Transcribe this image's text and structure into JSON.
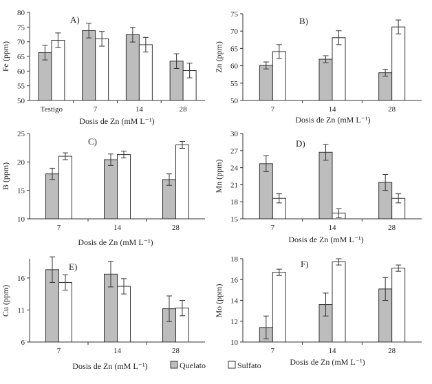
{
  "legend": [
    {
      "label": "Quelato",
      "color": "#bdbdbd"
    },
    {
      "label": "Sulfato",
      "color": "#ffffff"
    }
  ],
  "colors": {
    "quelato": "#bdbdbd",
    "sulfato": "#ffffff",
    "stroke": "#333333"
  },
  "chart_data": [
    {
      "type": "bar",
      "panel": "A)",
      "ylabel": "Fe (ppm)",
      "xlabel": "Dosis de Zn (mM L⁻¹)",
      "categories": [
        "Testigo",
        "7",
        "14",
        "28"
      ],
      "ylim": [
        50,
        80
      ],
      "yticks": [
        50,
        55,
        60,
        65,
        70,
        75,
        80
      ],
      "series": [
        {
          "name": "Quelato",
          "values": [
            66.3,
            73.8,
            72.4,
            63.4
          ],
          "errors": [
            2.5,
            2.5,
            2.5,
            2.5
          ]
        },
        {
          "name": "Sulfato",
          "values": [
            70.5,
            71.0,
            69.0,
            60.2
          ],
          "errors": [
            2.5,
            2.5,
            2.5,
            2.5
          ]
        }
      ]
    },
    {
      "type": "bar",
      "panel": "B)",
      "ylabel": "Zn (ppm)",
      "xlabel": "Dosis de Zn (mM L⁻¹)",
      "categories": [
        "7",
        "14",
        "28"
      ],
      "ylim": [
        50,
        75
      ],
      "yticks": [
        50,
        55,
        60,
        65,
        70,
        75
      ],
      "series": [
        {
          "name": "Quelato",
          "values": [
            60.1,
            61.9,
            58.0
          ],
          "errors": [
            1.0,
            1.0,
            1.0
          ]
        },
        {
          "name": "Sulfato",
          "values": [
            64.1,
            68.1,
            71.2
          ],
          "errors": [
            2.0,
            2.0,
            2.0
          ]
        }
      ]
    },
    {
      "type": "bar",
      "panel": "C)",
      "ylabel": "B (ppm)",
      "xlabel": "Dosis de Zn (mM L⁻¹)",
      "categories": [
        "7",
        "14",
        "28"
      ],
      "ylim": [
        10,
        25
      ],
      "yticks": [
        10,
        15,
        20,
        25
      ],
      "series": [
        {
          "name": "Quelato",
          "values": [
            17.9,
            20.4,
            16.9
          ],
          "errors": [
            1.0,
            1.0,
            1.0
          ]
        },
        {
          "name": "Sulfato",
          "values": [
            21.0,
            21.3,
            23.0
          ],
          "errors": [
            0.6,
            0.6,
            0.6
          ]
        }
      ]
    },
    {
      "type": "bar",
      "panel": "D)",
      "ylabel": "Mn (ppm)",
      "xlabel": "Dosis de Zn (mM L⁻¹)",
      "categories": [
        "7",
        "14",
        "28"
      ],
      "ylim": [
        15,
        30
      ],
      "yticks": [
        15,
        18,
        21,
        24,
        27,
        30
      ],
      "series": [
        {
          "name": "Quelato",
          "values": [
            24.7,
            26.7,
            21.4
          ],
          "errors": [
            1.4,
            1.4,
            1.4
          ]
        },
        {
          "name": "Sulfato",
          "values": [
            18.6,
            16.0,
            18.6
          ],
          "errors": [
            0.8,
            0.8,
            0.8
          ]
        }
      ]
    },
    {
      "type": "bar",
      "panel": "E)",
      "ylabel": "Cu (ppm)",
      "xlabel": "Dosis de Zn (mM L⁻¹)",
      "categories": [
        "7",
        "14",
        "28"
      ],
      "ylim": [
        6,
        19
      ],
      "yticks": [
        6,
        11,
        16
      ],
      "series": [
        {
          "name": "Quelato",
          "values": [
            17.3,
            16.6,
            11.2
          ],
          "errors": [
            2.0,
            2.0,
            2.0
          ]
        },
        {
          "name": "Sulfato",
          "values": [
            15.3,
            14.7,
            11.3
          ],
          "errors": [
            1.2,
            1.2,
            1.2
          ]
        }
      ]
    },
    {
      "type": "bar",
      "panel": "F)",
      "ylabel": "Mo (ppm)",
      "xlabel": "Dosis de Zn (mM L⁻¹)",
      "categories": [
        "7",
        "14",
        "28"
      ],
      "ylim": [
        10,
        18
      ],
      "yticks": [
        10,
        12,
        14,
        16,
        18
      ],
      "series": [
        {
          "name": "Quelato",
          "values": [
            11.4,
            13.6,
            15.1
          ],
          "errors": [
            1.1,
            1.1,
            1.1
          ]
        },
        {
          "name": "Sulfato",
          "values": [
            16.7,
            17.7,
            17.1
          ],
          "errors": [
            0.3,
            0.3,
            0.3
          ]
        }
      ]
    }
  ]
}
